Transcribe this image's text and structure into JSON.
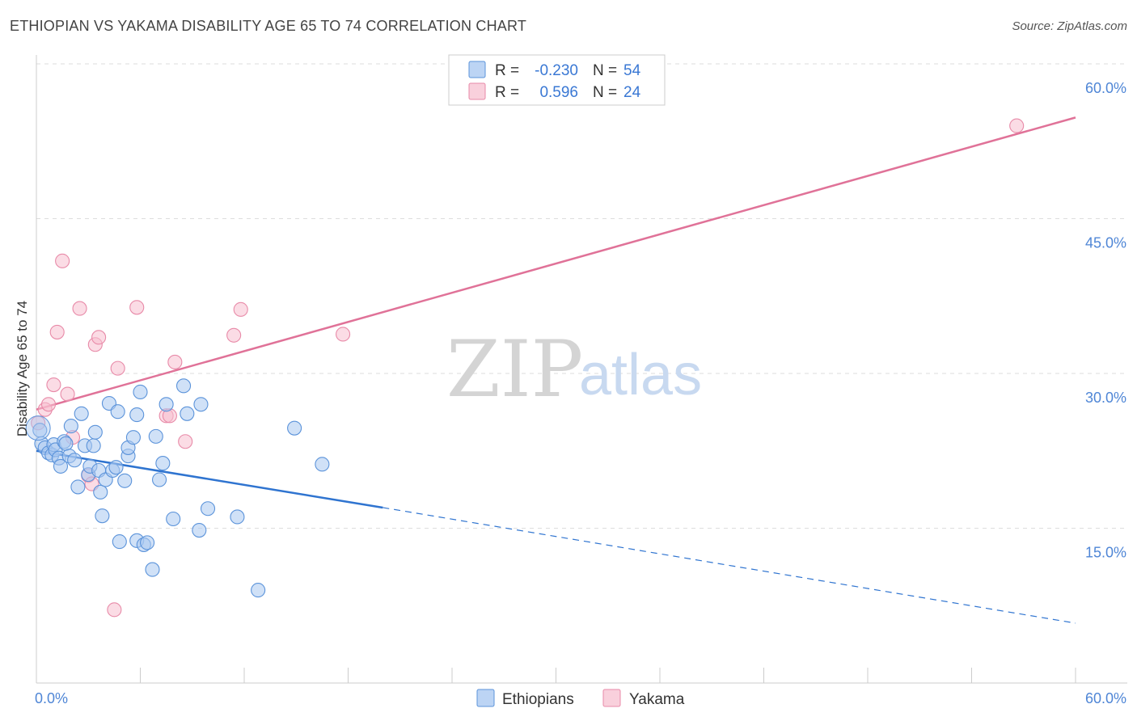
{
  "title": "ETHIOPIAN VS YAKAMA DISABILITY AGE 65 TO 74 CORRELATION CHART",
  "source": "Source: ZipAtlas.com",
  "watermark": {
    "zip": "ZIP",
    "atlas": "atlas"
  },
  "colors": {
    "ethiopian_fill": "#a9c8f0",
    "ethiopian_stroke": "#5b93da",
    "ethiopian_line": "#2f74d0",
    "yakama_fill": "#f7bfd0",
    "yakama_stroke": "#e88aa8",
    "yakama_line": "#e07298",
    "grid": "#dddddd",
    "tick_label": "#4f86d6"
  },
  "legend": {
    "rows": [
      {
        "r_label": "R =",
        "r_value": "-0.230",
        "n_label": "N =",
        "n_value": "54"
      },
      {
        "r_label": "R =",
        "r_value": "0.596",
        "n_label": "N =",
        "n_value": "24"
      }
    ]
  },
  "bottom_legend": [
    "Ethiopians",
    "Yakama"
  ],
  "chart_data": {
    "type": "scatter",
    "title": "ETHIOPIAN VS YAKAMA DISABILITY AGE 65 TO 74 CORRELATION CHART",
    "xlabel": "",
    "ylabel": "Disability Age 65 to 74",
    "xlim": [
      0,
      60
    ],
    "ylim": [
      0,
      60
    ],
    "x_tick_labels": [
      "0.0%",
      "60.0%"
    ],
    "y_ticks": [
      15,
      30,
      45,
      60
    ],
    "y_tick_labels": [
      "15.0%",
      "30.0%",
      "45.0%",
      "60.0%"
    ],
    "series": [
      {
        "name": "Ethiopians",
        "r": -0.23,
        "n": 54,
        "trend": {
          "x_start": 0,
          "y_start": 22.5,
          "x_solid_end": 20,
          "y_solid_end": 17.0,
          "x_end": 60,
          "y_end": 5.8
        },
        "points": [
          [
            0.2,
            24.5
          ],
          [
            0.3,
            23.2
          ],
          [
            0.5,
            22.8
          ],
          [
            0.7,
            22.3
          ],
          [
            0.9,
            22.1
          ],
          [
            1.0,
            23.1
          ],
          [
            1.1,
            22.6
          ],
          [
            1.3,
            21.8
          ],
          [
            1.4,
            21.0
          ],
          [
            1.6,
            23.4
          ],
          [
            1.7,
            23.2
          ],
          [
            1.9,
            22.0
          ],
          [
            2.0,
            24.9
          ],
          [
            2.2,
            21.6
          ],
          [
            2.4,
            19.0
          ],
          [
            2.6,
            26.1
          ],
          [
            2.8,
            23.0
          ],
          [
            3.0,
            20.2
          ],
          [
            3.1,
            21.0
          ],
          [
            3.3,
            23.0
          ],
          [
            3.4,
            24.3
          ],
          [
            3.6,
            20.6
          ],
          [
            3.7,
            18.5
          ],
          [
            3.8,
            16.2
          ],
          [
            4.0,
            19.7
          ],
          [
            4.2,
            27.1
          ],
          [
            4.4,
            20.6
          ],
          [
            4.6,
            20.9
          ],
          [
            4.7,
            26.3
          ],
          [
            4.8,
            13.7
          ],
          [
            5.1,
            19.6
          ],
          [
            5.3,
            22.0
          ],
          [
            5.3,
            22.8
          ],
          [
            5.6,
            23.8
          ],
          [
            5.8,
            26.0
          ],
          [
            5.8,
            13.8
          ],
          [
            6.0,
            28.2
          ],
          [
            6.2,
            13.4
          ],
          [
            6.4,
            13.6
          ],
          [
            6.7,
            11.0
          ],
          [
            6.9,
            23.9
          ],
          [
            7.1,
            19.7
          ],
          [
            7.3,
            21.3
          ],
          [
            7.5,
            27.0
          ],
          [
            7.9,
            15.9
          ],
          [
            8.5,
            28.8
          ],
          [
            8.7,
            26.1
          ],
          [
            9.5,
            27.0
          ],
          [
            9.4,
            14.8
          ],
          [
            9.9,
            16.9
          ],
          [
            11.6,
            16.1
          ],
          [
            12.8,
            9.0
          ],
          [
            14.9,
            24.7
          ],
          [
            16.5,
            21.2
          ]
        ]
      },
      {
        "name": "Yakama",
        "r": 0.596,
        "n": 24,
        "trend": {
          "x_start": 0,
          "y_start": 26.5,
          "x_end": 60,
          "y_end": 54.8
        },
        "points": [
          [
            0.1,
            25.2
          ],
          [
            0.5,
            26.5
          ],
          [
            0.7,
            27.0
          ],
          [
            1.0,
            28.9
          ],
          [
            1.2,
            34.0
          ],
          [
            1.5,
            40.9
          ],
          [
            1.8,
            28.0
          ],
          [
            2.1,
            23.8
          ],
          [
            2.5,
            36.3
          ],
          [
            3.0,
            20.1
          ],
          [
            3.2,
            19.3
          ],
          [
            3.4,
            32.8
          ],
          [
            3.6,
            33.5
          ],
          [
            4.5,
            7.1
          ],
          [
            4.7,
            30.5
          ],
          [
            5.8,
            36.4
          ],
          [
            7.5,
            25.9
          ],
          [
            7.7,
            25.9
          ],
          [
            8.0,
            31.1
          ],
          [
            8.6,
            23.4
          ],
          [
            11.4,
            33.7
          ],
          [
            11.8,
            36.2
          ],
          [
            17.7,
            33.8
          ],
          [
            56.6,
            54.0
          ]
        ]
      }
    ]
  }
}
